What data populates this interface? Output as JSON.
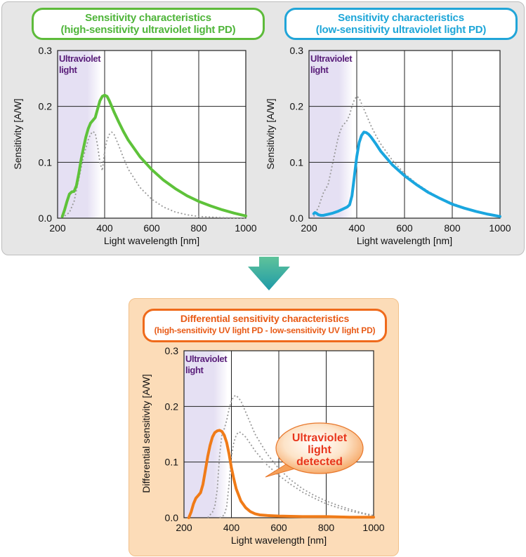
{
  "titles": {
    "high": {
      "line1": "Sensitivity characteristics",
      "line2": "(high-sensitivity ultraviolet light PD)"
    },
    "low": {
      "line1": "Sensitivity characteristics",
      "line2": "(low-sensitivity ultraviolet light PD)"
    },
    "diff": {
      "line1": "Differential sensitivity characteristics",
      "line2": "(high-sensitivity UV light PD - low-sensitivity UV light PD)"
    }
  },
  "callout": {
    "lines": [
      "Ultraviolet",
      "light",
      "detected"
    ]
  },
  "colors": {
    "high": "#5ec23a",
    "low": "#1aa6df",
    "diff": "#f07b18",
    "reference": "#999999",
    "uv_band": "#e5e0f3"
  },
  "chart_data": [
    {
      "type": "line",
      "xlabel": "Light wavelength [nm]",
      "ylabel": "Sensitivity [A/W]",
      "xlim": [
        200,
        1000
      ],
      "ylim": [
        0,
        0.3
      ],
      "x_ticks": [
        200,
        400,
        600,
        800,
        1000
      ],
      "y_ticks": [
        "0.0",
        "0.1",
        "0.2",
        "0.3"
      ],
      "grid": true,
      "band": {
        "label_lines": [
          "Ultraviolet",
          "light"
        ],
        "range": [
          200,
          380
        ]
      },
      "series": [
        {
          "style": "solid",
          "color": "high",
          "x": [
            220,
            230,
            240,
            250,
            260,
            270,
            280,
            290,
            300,
            310,
            320,
            330,
            340,
            350,
            360,
            370,
            380,
            390,
            400,
            410,
            420,
            430,
            440,
            460,
            480,
            500,
            550,
            600,
            650,
            700,
            750,
            800,
            850,
            900,
            950,
            1000
          ],
          "y": [
            0.003,
            0.015,
            0.03,
            0.043,
            0.047,
            0.048,
            0.058,
            0.08,
            0.105,
            0.125,
            0.145,
            0.16,
            0.17,
            0.175,
            0.18,
            0.195,
            0.21,
            0.218,
            0.22,
            0.218,
            0.21,
            0.2,
            0.19,
            0.172,
            0.155,
            0.14,
            0.11,
            0.087,
            0.068,
            0.053,
            0.04,
            0.03,
            0.022,
            0.015,
            0.009,
            0.004
          ]
        },
        {
          "style": "dotted",
          "color": "reference",
          "x": [
            230,
            250,
            270,
            290,
            310,
            330,
            340,
            350,
            360,
            370,
            380,
            390,
            400,
            410,
            420,
            430,
            440,
            460,
            480,
            500,
            550,
            600,
            650,
            700,
            750,
            800,
            850,
            900,
            950,
            1000
          ],
          "y": [
            0.004,
            0.01,
            0.03,
            0.07,
            0.11,
            0.14,
            0.15,
            0.155,
            0.152,
            0.13,
            0.1,
            0.085,
            0.12,
            0.14,
            0.15,
            0.154,
            0.15,
            0.13,
            0.108,
            0.088,
            0.055,
            0.034,
            0.02,
            0.011,
            0.006,
            0.003,
            0.002,
            0.001,
            0.0005,
            0.0002
          ]
        }
      ]
    },
    {
      "type": "line",
      "xlabel": "Light wavelength [nm]",
      "ylabel": "Sensitivity [A/W]",
      "xlim": [
        200,
        1000
      ],
      "ylim": [
        0,
        0.3
      ],
      "x_ticks": [
        200,
        400,
        600,
        800,
        1000
      ],
      "y_ticks": [
        "0.0",
        "0.1",
        "0.2",
        "0.3"
      ],
      "grid": true,
      "band": {
        "label_lines": [
          "Ultraviolet",
          "light"
        ],
        "range": [
          200,
          380
        ]
      },
      "series": [
        {
          "style": "solid",
          "color": "low",
          "x": [
            220,
            225,
            230,
            240,
            250,
            260,
            270,
            280,
            300,
            320,
            340,
            360,
            370,
            380,
            390,
            400,
            410,
            420,
            430,
            440,
            450,
            460,
            480,
            500,
            550,
            600,
            650,
            700,
            750,
            800,
            850,
            900,
            950,
            1000
          ],
          "y": [
            0.008,
            0.01,
            0.009,
            0.006,
            0.005,
            0.005,
            0.006,
            0.007,
            0.009,
            0.012,
            0.016,
            0.02,
            0.024,
            0.04,
            0.075,
            0.11,
            0.135,
            0.148,
            0.154,
            0.153,
            0.15,
            0.145,
            0.133,
            0.12,
            0.095,
            0.076,
            0.06,
            0.046,
            0.035,
            0.025,
            0.018,
            0.012,
            0.007,
            0.003
          ]
        },
        {
          "style": "dotted",
          "color": "reference",
          "x": [
            220,
            240,
            260,
            280,
            290,
            300,
            310,
            320,
            330,
            340,
            350,
            360,
            370,
            380,
            390,
            400,
            410,
            420,
            440,
            460,
            480,
            500,
            550,
            600,
            650,
            700,
            750,
            800,
            850,
            900,
            950,
            1000
          ],
          "y": [
            0.003,
            0.02,
            0.045,
            0.06,
            0.08,
            0.1,
            0.12,
            0.14,
            0.155,
            0.165,
            0.17,
            0.175,
            0.185,
            0.2,
            0.212,
            0.218,
            0.215,
            0.205,
            0.185,
            0.165,
            0.148,
            0.133,
            0.103,
            0.08,
            0.062,
            0.048,
            0.036,
            0.027,
            0.019,
            0.012,
            0.007,
            0.003
          ]
        }
      ]
    },
    {
      "type": "line",
      "xlabel": "Light wavelength [nm]",
      "ylabel": "Differential sensitivity [A/W]",
      "xlim": [
        200,
        1000
      ],
      "ylim": [
        0,
        0.3
      ],
      "x_ticks": [
        200,
        400,
        600,
        800,
        1000
      ],
      "y_ticks": [
        "0.0",
        "0.1",
        "0.2",
        "0.3"
      ],
      "grid": true,
      "band": {
        "label_lines": [
          "Ultraviolet",
          "light"
        ],
        "range": [
          200,
          380
        ]
      },
      "series": [
        {
          "style": "solid",
          "color": "diff",
          "x": [
            220,
            230,
            240,
            250,
            260,
            270,
            280,
            290,
            300,
            310,
            320,
            330,
            340,
            350,
            360,
            370,
            380,
            390,
            400,
            410,
            420,
            440,
            460,
            480,
            500,
            520,
            550,
            600,
            700,
            800,
            900,
            1000
          ],
          "y": [
            0.0,
            0.01,
            0.025,
            0.035,
            0.04,
            0.045,
            0.06,
            0.085,
            0.11,
            0.13,
            0.145,
            0.153,
            0.156,
            0.157,
            0.155,
            0.148,
            0.135,
            0.115,
            0.09,
            0.07,
            0.052,
            0.03,
            0.018,
            0.011,
            0.007,
            0.005,
            0.004,
            0.003,
            0.002,
            0.002,
            0.001,
            0.001
          ]
        },
        {
          "style": "dotted",
          "color": "reference",
          "x": [
            300,
            310,
            320,
            330,
            340,
            350,
            360,
            370,
            380,
            390,
            400,
            410,
            420,
            440,
            460,
            480,
            500,
            550,
            600,
            650,
            700,
            750,
            800,
            850,
            900,
            950,
            1000
          ],
          "y": [
            0.0,
            0.005,
            0.01,
            0.02,
            0.05,
            0.11,
            0.15,
            0.16,
            0.175,
            0.195,
            0.21,
            0.218,
            0.22,
            0.21,
            0.19,
            0.17,
            0.15,
            0.115,
            0.088,
            0.068,
            0.052,
            0.04,
            0.03,
            0.022,
            0.015,
            0.009,
            0.004
          ]
        },
        {
          "style": "dotted",
          "color": "reference",
          "x": [
            350,
            360,
            370,
            380,
            390,
            400,
            410,
            420,
            430,
            440,
            460,
            480,
            500,
            550,
            600,
            650,
            700,
            750,
            800,
            850,
            900,
            1000
          ],
          "y": [
            0.0,
            0.002,
            0.005,
            0.02,
            0.06,
            0.11,
            0.135,
            0.148,
            0.154,
            0.153,
            0.145,
            0.133,
            0.12,
            0.095,
            0.076,
            0.06,
            0.046,
            0.035,
            0.025,
            0.018,
            0.012,
            0.003
          ]
        }
      ]
    }
  ]
}
